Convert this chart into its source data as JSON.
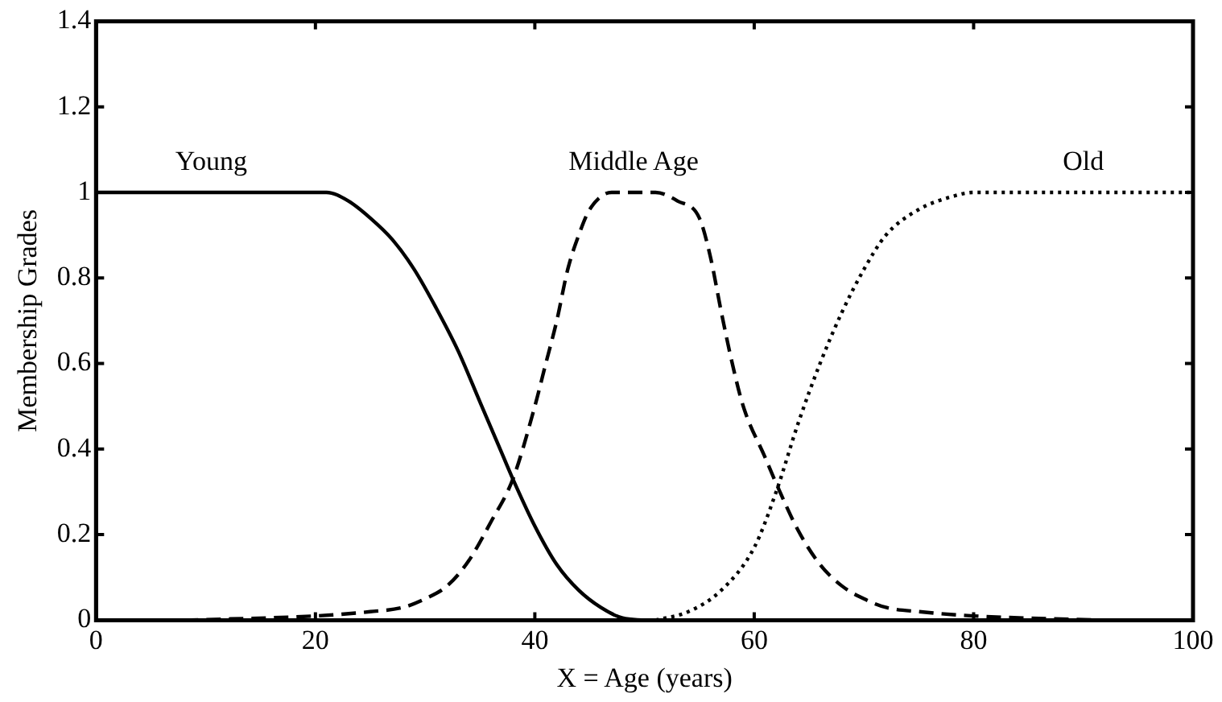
{
  "chart_data": {
    "type": "line",
    "xlabel": "X = Age (years)",
    "ylabel": "Membership Grades",
    "xlim": [
      0,
      100
    ],
    "xticks": [
      0,
      20,
      40,
      60,
      80,
      100
    ],
    "ylim": [
      0,
      1.4
    ],
    "yticks": [
      0,
      0.2,
      0.4,
      0.6,
      0.8,
      1,
      1.2,
      1.4
    ],
    "grid": false,
    "legend": false,
    "marker": "none",
    "series": [
      {
        "name": "Young",
        "color": "#000000",
        "line_style": "solid",
        "x": [
          0,
          20,
          21,
          23,
          25,
          27,
          29,
          31,
          33,
          35,
          37,
          38,
          40,
          42,
          44,
          46,
          48,
          50
        ],
        "values": [
          1,
          1,
          1,
          0.98,
          0.94,
          0.89,
          0.82,
          0.73,
          0.63,
          0.51,
          0.39,
          0.33,
          0.22,
          0.13,
          0.07,
          0.03,
          0.005,
          0
        ]
      },
      {
        "name": "Middle Age",
        "color": "#000000",
        "line_style": "dashed",
        "x": [
          8,
          20,
          25,
          28,
          30,
          32,
          34,
          36,
          38,
          40,
          41,
          42,
          43,
          44,
          45,
          47,
          51,
          53,
          55,
          56,
          57,
          58,
          59,
          61,
          62,
          64,
          66,
          68,
          70,
          72,
          75,
          80,
          92
        ],
        "values": [
          0,
          0.01,
          0.02,
          0.03,
          0.05,
          0.08,
          0.14,
          0.23,
          0.33,
          0.5,
          0.6,
          0.7,
          0.82,
          0.9,
          0.96,
          1,
          1,
          0.98,
          0.94,
          0.85,
          0.72,
          0.6,
          0.5,
          0.38,
          0.32,
          0.21,
          0.13,
          0.08,
          0.05,
          0.03,
          0.02,
          0.01,
          0
        ]
      },
      {
        "name": "Old",
        "color": "#000000",
        "line_style": "dotted",
        "x": [
          51,
          54,
          57,
          60,
          62,
          64,
          66,
          68,
          70,
          72,
          75,
          78,
          80,
          100
        ],
        "values": [
          0,
          0.02,
          0.07,
          0.17,
          0.3,
          0.46,
          0.6,
          0.72,
          0.82,
          0.9,
          0.96,
          0.99,
          1,
          1
        ]
      }
    ]
  }
}
